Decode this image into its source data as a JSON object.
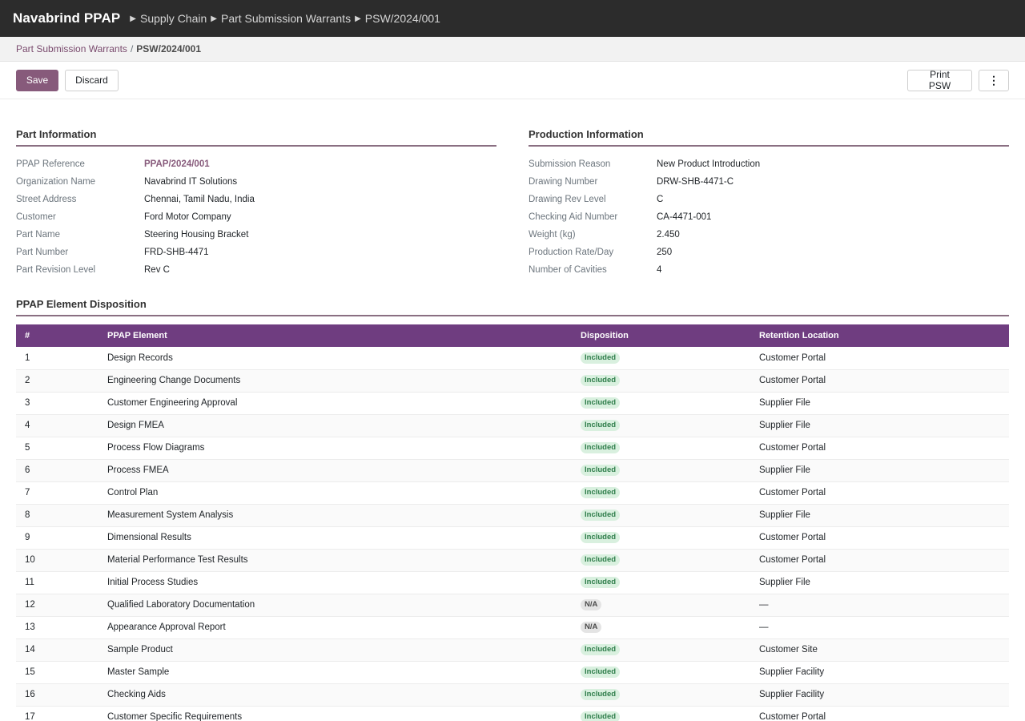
{
  "app": {
    "brand": "Navabrind PPAP",
    "breadcrumbs": [
      "Supply Chain",
      "Part Submission Warrants",
      "PSW/2024/001"
    ]
  },
  "subbar": {
    "parent_link": "Part Submission Warrants",
    "separator": "/",
    "current": "PSW/2024/001"
  },
  "toolbar": {
    "save_label": "Save",
    "discard_label": "Discard",
    "print_label": "Print PSW",
    "more_label": "⋮"
  },
  "part_information": {
    "title": "Part Information",
    "fields": [
      {
        "label": "PPAP Reference",
        "value": "PPAP/2024/001"
      },
      {
        "label": "Organization Name",
        "value": "Navabrind IT Solutions"
      },
      {
        "label": "Street Address",
        "value": "Chennai, Tamil Nadu, India"
      },
      {
        "label": "Customer",
        "value": "Ford Motor Company"
      },
      {
        "label": "Part Name",
        "value": "Steering Housing Bracket"
      },
      {
        "label": "Part Number",
        "value": "FRD-SHB-4471"
      },
      {
        "label": "Part Revision Level",
        "value": "Rev C"
      }
    ]
  },
  "production_information": {
    "title": "Production Information",
    "fields": [
      {
        "label": "Submission Reason",
        "value": "New Product Introduction"
      },
      {
        "label": "Drawing Number",
        "value": "DRW-SHB-4471-C"
      },
      {
        "label": "Drawing Rev Level",
        "value": "C"
      },
      {
        "label": "Checking Aid Number",
        "value": "CA-4471-001"
      },
      {
        "label": "Weight (kg)",
        "value": "2.450"
      },
      {
        "label": "Production Rate/Day",
        "value": "250"
      },
      {
        "label": "Number of Cavities",
        "value": "4"
      }
    ]
  },
  "disposition": {
    "title": "PPAP Element Disposition",
    "columns": [
      "#",
      "PPAP Element",
      "Disposition",
      "Retention Location"
    ],
    "rows": [
      {
        "num": "1",
        "element": "Design Records",
        "disposition": "Included",
        "status": "included",
        "location": "Customer Portal"
      },
      {
        "num": "2",
        "element": "Engineering Change Documents",
        "disposition": "Included",
        "status": "included",
        "location": "Customer Portal"
      },
      {
        "num": "3",
        "element": "Customer Engineering Approval",
        "disposition": "Included",
        "status": "included",
        "location": "Supplier File"
      },
      {
        "num": "4",
        "element": "Design FMEA",
        "disposition": "Included",
        "status": "included",
        "location": "Supplier File"
      },
      {
        "num": "5",
        "element": "Process Flow Diagrams",
        "disposition": "Included",
        "status": "included",
        "location": "Customer Portal"
      },
      {
        "num": "6",
        "element": "Process FMEA",
        "disposition": "Included",
        "status": "included",
        "location": "Supplier File"
      },
      {
        "num": "7",
        "element": "Control Plan",
        "disposition": "Included",
        "status": "included",
        "location": "Customer Portal"
      },
      {
        "num": "8",
        "element": "Measurement System Analysis",
        "disposition": "Included",
        "status": "included",
        "location": "Supplier File"
      },
      {
        "num": "9",
        "element": "Dimensional Results",
        "disposition": "Included",
        "status": "included",
        "location": "Customer Portal"
      },
      {
        "num": "10",
        "element": "Material Performance Test Results",
        "disposition": "Included",
        "status": "included",
        "location": "Customer Portal"
      },
      {
        "num": "11",
        "element": "Initial Process Studies",
        "disposition": "Included",
        "status": "included",
        "location": "Supplier File"
      },
      {
        "num": "12",
        "element": "Qualified Laboratory Documentation",
        "disposition": "N/A",
        "status": "na",
        "location": "—"
      },
      {
        "num": "13",
        "element": "Appearance Approval Report",
        "disposition": "N/A",
        "status": "na",
        "location": "—"
      },
      {
        "num": "14",
        "element": "Sample Product",
        "disposition": "Included",
        "status": "included",
        "location": "Customer Site"
      },
      {
        "num": "15",
        "element": "Master Sample",
        "disposition": "Included",
        "status": "included",
        "location": "Supplier Facility"
      },
      {
        "num": "16",
        "element": "Checking Aids",
        "disposition": "Included",
        "status": "included",
        "location": "Supplier Facility"
      },
      {
        "num": "17",
        "element": "Customer Specific Requirements",
        "disposition": "Included",
        "status": "included",
        "location": "Customer Portal"
      }
    ]
  }
}
